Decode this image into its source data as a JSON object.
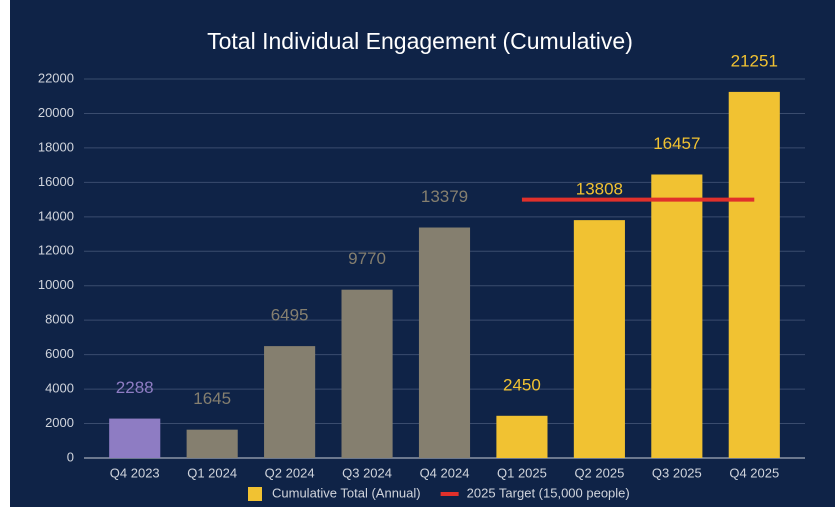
{
  "chart_data": {
    "type": "bar",
    "title": "Total Individual Engagement (Cumulative)",
    "categories": [
      "Q4 2023",
      "Q1 2024",
      "Q2 2024",
      "Q3 2024",
      "Q4 2024",
      "Q1 2025",
      "Q2 2025",
      "Q3 2025",
      "Q4 2025"
    ],
    "series": [
      {
        "name": "Cumulative Total (Annual)",
        "color": "#f1c232",
        "colors": [
          "#8e7cc3",
          "#857f6f",
          "#857f6f",
          "#857f6f",
          "#857f6f",
          "#f1c232",
          "#f1c232",
          "#f1c232",
          "#f1c232"
        ],
        "values": [
          2288,
          1645,
          6495,
          9770,
          13379,
          2450,
          13808,
          16457,
          21251
        ]
      },
      {
        "name": "2025 Target (15,000 people)",
        "color": "#e0302b",
        "type": "line",
        "values": [
          null,
          null,
          null,
          null,
          null,
          15000,
          15000,
          15000,
          15000
        ]
      }
    ],
    "ylim": [
      0,
      22000
    ],
    "yticks": [
      0,
      2000,
      4000,
      6000,
      8000,
      10000,
      12000,
      14000,
      16000,
      18000,
      20000,
      22000
    ],
    "grid": true,
    "legend": "bottom"
  }
}
